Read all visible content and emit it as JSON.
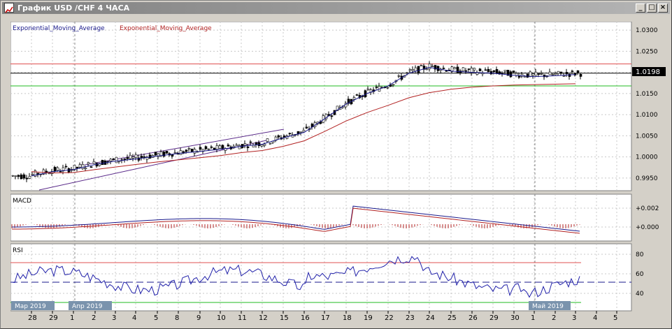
{
  "window": {
    "title": "График USD /CHF  4 ЧАСА"
  },
  "titlebar_buttons": {
    "minimize": "_",
    "maximize": "□",
    "close": "×"
  },
  "main_pane": {
    "indicator_labels": [
      "Exponential_Moving_Average",
      "Exponential_Moving_Average"
    ],
    "indicator_colors": [
      "#1a1a8c",
      "#b22222"
    ],
    "y_ticks": [
      "1.0300",
      "1.0250",
      "1.0200",
      "1.0150",
      "1.0100",
      "1.0050",
      "1.0000",
      "0.9950"
    ],
    "current_price": "1.0198",
    "resistance_line": 1.022,
    "support_line": 1.0168,
    "current_line": 1.0198
  },
  "macd_pane": {
    "label": "MACD",
    "y_ticks": [
      "+0.002",
      "+0.000"
    ]
  },
  "rsi_pane": {
    "label": "RSI",
    "y_ticks": [
      "80",
      "60",
      "40"
    ],
    "levels": {
      "upper": 70,
      "middle": 50,
      "lower": 30
    }
  },
  "x_axis": {
    "month_labels": [
      "Мар 2019",
      "Апр 2019",
      "Май 2019"
    ],
    "day_labels": [
      "28",
      "29",
      "1",
      "2",
      "3",
      "4",
      "5",
      "8",
      "9",
      "10",
      "11",
      "12",
      "15",
      "16",
      "17",
      "18",
      "19",
      "22",
      "23",
      "24",
      "25",
      "26",
      "29",
      "30",
      "1",
      "2",
      "3",
      "4",
      "5"
    ]
  },
  "colors": {
    "price_bg": "#ffffff",
    "resistance": "#e05050",
    "support": "#22bb22",
    "ema_fast": "#1a1a8c",
    "ema_slow": "#b22222",
    "rsi_high": "#cc33cc"
  },
  "chart_data": {
    "type": "line",
    "title": "",
    "x": [
      "28",
      "29",
      "1",
      "2",
      "3",
      "4",
      "5",
      "8",
      "9",
      "10",
      "11",
      "12",
      "15",
      "16",
      "17",
      "18",
      "19",
      "22",
      "23",
      "24",
      "25",
      "26",
      "29",
      "30",
      "1",
      "2",
      "3"
    ],
    "series": [
      {
        "name": "Exponential_Moving_Average",
        "values": [
          0.9955,
          0.9965,
          0.997,
          0.9982,
          0.999,
          0.9995,
          1.0002,
          1.0008,
          1.0013,
          1.0018,
          1.0025,
          1.003,
          1.0045,
          1.0058,
          1.009,
          1.0125,
          1.015,
          1.0168,
          1.0198,
          1.0212,
          1.0203,
          1.02,
          1.0198,
          1.0193,
          1.019,
          1.0192,
          1.0195
        ]
      },
      {
        "name": "Exponential_Moving_Average",
        "values": [
          0.9965,
          0.9962,
          0.9963,
          0.997,
          0.9976,
          0.9982,
          0.9988,
          0.9993,
          0.9998,
          1.0003,
          1.001,
          1.0015,
          1.0025,
          1.0038,
          1.006,
          1.0085,
          1.0105,
          1.0122,
          1.014,
          1.0152,
          1.016,
          1.0165,
          1.0168,
          1.017,
          1.0171,
          1.0172,
          1.0173
        ]
      }
    ],
    "ylim": [
      0.992,
      1.032
    ]
  }
}
